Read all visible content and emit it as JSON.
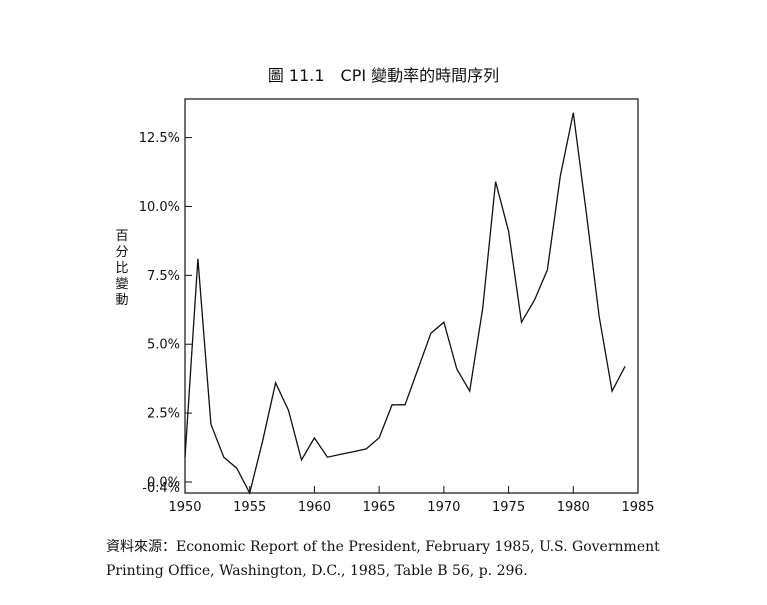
{
  "chart_data": {
    "type": "line",
    "title": "圖 11.1　CPI 變動率的時間序列",
    "ylabel_chars": [
      "百",
      "分",
      "比",
      "變",
      "動"
    ],
    "xlim": [
      1950,
      1985
    ],
    "ylim": [
      -0.4,
      13.9
    ],
    "x_ticks": [
      1950,
      1955,
      1960,
      1965,
      1970,
      1975,
      1980,
      1985
    ],
    "x_tick_labels": [
      "1950",
      "1955",
      "1960",
      "1965",
      "1970",
      "1975",
      "1980",
      "1985"
    ],
    "y_ticks": [
      -0.4,
      0.0,
      2.5,
      5.0,
      7.5,
      10.0,
      12.5
    ],
    "y_tick_labels": [
      "-0.4%",
      "0.0%",
      "2.5%",
      "5.0%",
      "7.5%",
      "10.0%",
      "12.5%"
    ],
    "grid": false,
    "series": [
      {
        "x": [
          1950,
          1951,
          1952,
          1953,
          1954,
          1955,
          1956,
          1957,
          1958,
          1959,
          1960,
          1961,
          1962,
          1963,
          1964,
          1965,
          1966,
          1967,
          1968,
          1969,
          1970,
          1971,
          1972,
          1973,
          1974,
          1975,
          1976,
          1977,
          1978,
          1979,
          1980,
          1981,
          1982,
          1983,
          1984
        ],
        "values": [
          0.9,
          8.1,
          2.1,
          0.9,
          0.5,
          -0.4,
          1.5,
          3.6,
          2.6,
          0.8,
          1.6,
          0.9,
          1.0,
          1.1,
          1.2,
          1.6,
          2.8,
          2.8,
          4.1,
          5.4,
          5.8,
          4.1,
          3.3,
          6.3,
          10.9,
          9.1,
          5.8,
          6.6,
          7.7,
          11.1,
          13.4,
          9.8,
          6.0,
          3.3,
          4.2
        ]
      }
    ]
  },
  "source_note": {
    "line1": "資料來源：Economic Report of the President, February 1985, U.S. Government",
    "line2": "Printing Office, Washington, D.C., 1985, Table B 56, p. 296."
  }
}
